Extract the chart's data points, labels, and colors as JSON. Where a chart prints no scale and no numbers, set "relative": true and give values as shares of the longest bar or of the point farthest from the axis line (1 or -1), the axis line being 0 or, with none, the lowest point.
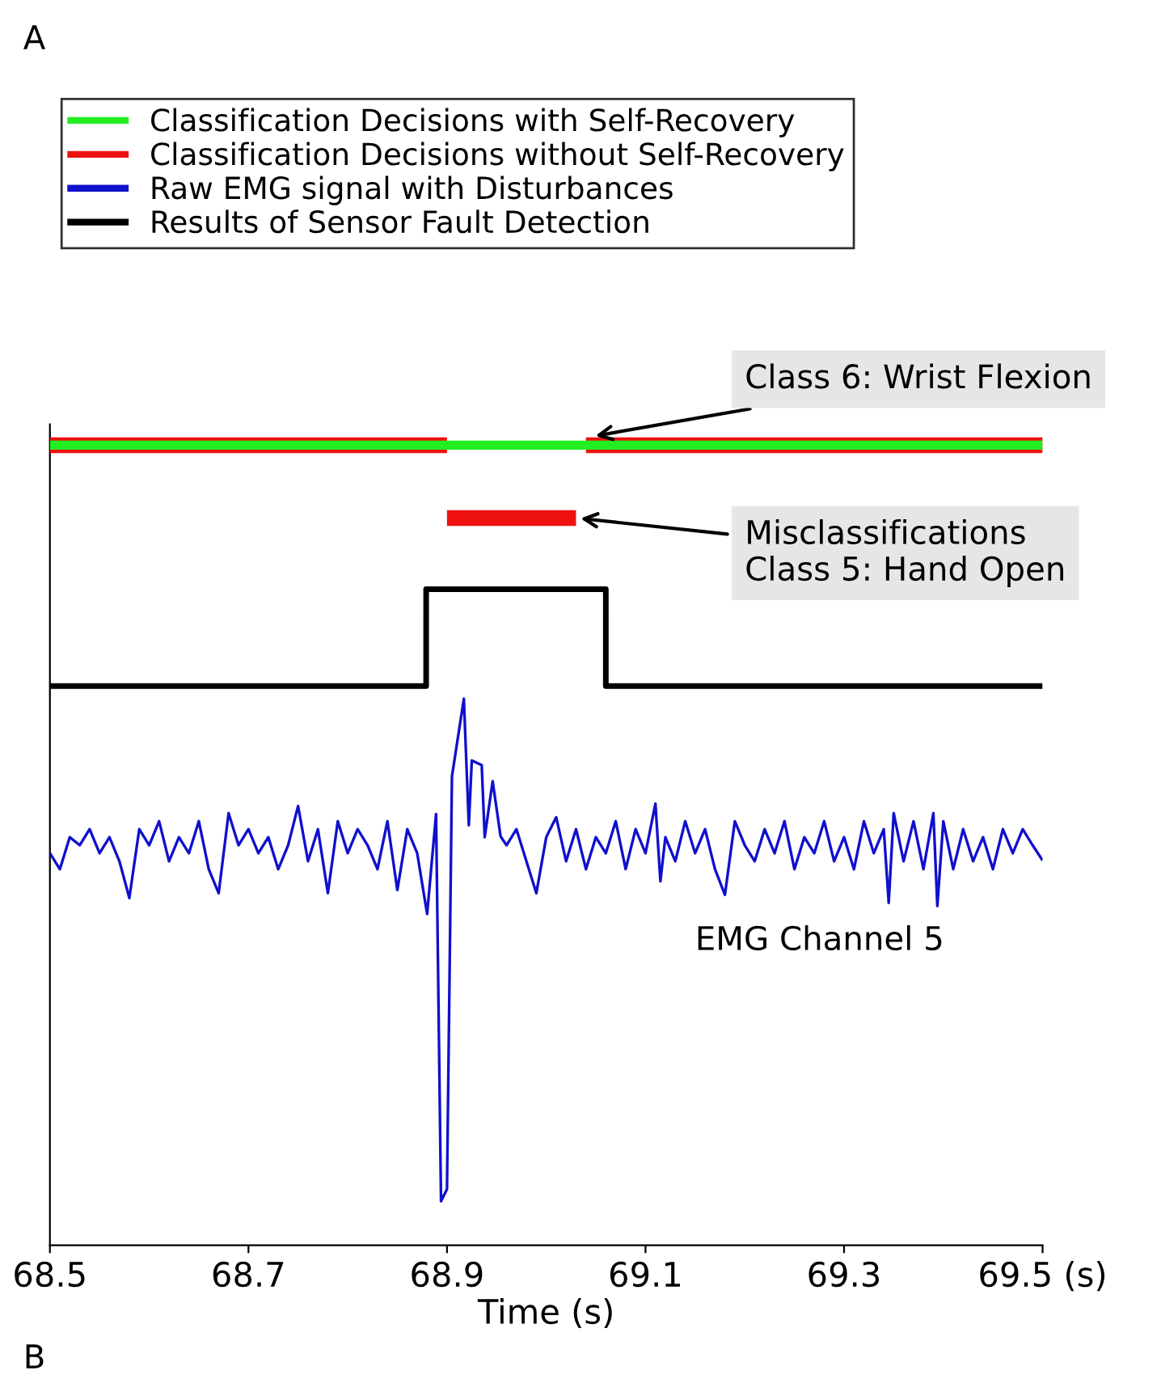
{
  "chart_data": {
    "type": "line",
    "relative": true,
    "xlabel": "Time (s)",
    "xlim": [
      68.5,
      69.5
    ],
    "xticks": [
      68.5,
      68.7,
      68.9,
      69.1,
      69.3,
      {
        "value": 69.5,
        "label": "69.5 (s)"
      }
    ],
    "grid": false,
    "legend": "top",
    "series": [
      {
        "name": "Classification Decisions with Self-Recovery",
        "color": "#22ee22",
        "x": [
          68.5,
          69.5
        ],
        "values": [
          1,
          1
        ]
      },
      {
        "name": "Classification Decisions without Self-Recovery",
        "color": "#ee1111",
        "x": [
          68.5,
          68.9
        ],
        "values": [
          1,
          1
        ]
      },
      {
        "name": "Raw EMG signal with Disturbances",
        "color": "#1010cc",
        "x": [
          68.5,
          68.51,
          68.52,
          68.53,
          68.54,
          68.55,
          68.56,
          68.57,
          68.58,
          68.59,
          68.6,
          68.61,
          68.62,
          68.63,
          68.64,
          68.65,
          68.66,
          68.67,
          68.68,
          68.69,
          68.7,
          68.71,
          68.72,
          68.73,
          68.74,
          68.75,
          68.76,
          68.77,
          68.78,
          68.79,
          68.8,
          68.81,
          68.82,
          68.83,
          68.84,
          68.85,
          68.86,
          68.87,
          68.88,
          68.889,
          68.894,
          68.9,
          68.905,
          68.917,
          68.922,
          68.925,
          68.935,
          68.938,
          68.946,
          68.954,
          68.96,
          68.97,
          68.98,
          68.99,
          69.0,
          69.01,
          69.02,
          69.03,
          69.04,
          69.05,
          69.06,
          69.07,
          69.08,
          69.09,
          69.1,
          69.11,
          69.115,
          69.12,
          69.13,
          69.14,
          69.15,
          69.16,
          69.17,
          69.18,
          69.19,
          69.2,
          69.21,
          69.22,
          69.23,
          69.24,
          69.25,
          69.26,
          69.27,
          69.28,
          69.29,
          69.3,
          69.31,
          69.32,
          69.33,
          69.34,
          69.345,
          69.35,
          69.36,
          69.37,
          69.38,
          69.39,
          69.394,
          69.4,
          69.41,
          69.42,
          69.43,
          69.44,
          69.45,
          69.46,
          69.47,
          69.48,
          69.49,
          69.5
        ],
        "values": [
          0.49,
          0.47,
          0.51,
          0.5,
          0.52,
          0.49,
          0.51,
          0.48,
          0.434,
          0.52,
          0.5,
          0.53,
          0.48,
          0.51,
          0.49,
          0.53,
          0.47,
          0.44,
          0.54,
          0.5,
          0.52,
          0.49,
          0.51,
          0.47,
          0.5,
          0.549,
          0.48,
          0.52,
          0.44,
          0.53,
          0.49,
          0.52,
          0.5,
          0.47,
          0.53,
          0.444,
          0.52,
          0.49,
          0.414,
          0.539,
          0.055,
          0.07,
          0.586,
          0.683,
          0.525,
          0.606,
          0.6,
          0.51,
          0.58,
          0.511,
          0.5,
          0.52,
          0.48,
          0.44,
          0.51,
          0.535,
          0.48,
          0.52,
          0.47,
          0.51,
          0.49,
          0.53,
          0.47,
          0.52,
          0.49,
          0.552,
          0.455,
          0.51,
          0.48,
          0.53,
          0.49,
          0.52,
          0.47,
          0.438,
          0.53,
          0.5,
          0.48,
          0.52,
          0.49,
          0.53,
          0.47,
          0.51,
          0.49,
          0.53,
          0.48,
          0.51,
          0.47,
          0.53,
          0.49,
          0.52,
          0.428,
          0.54,
          0.48,
          0.53,
          0.47,
          0.54,
          0.424,
          0.53,
          0.47,
          0.52,
          0.48,
          0.51,
          0.47,
          0.52,
          0.49,
          0.52,
          0.5,
          0.481
        ]
      },
      {
        "name": "Results of Sensor Fault Detection",
        "color": "#000000",
        "x": [
          68.5,
          68.879,
          68.879,
          69.06,
          69.06,
          69.5
        ],
        "values": [
          0.699,
          0.699,
          0.82,
          0.82,
          0.699,
          0.699
        ]
      },
      {
        "color": "#ee1111",
        "x": [
          69.04,
          69.5
        ],
        "values": [
          1,
          1
        ]
      },
      {
        "color": "#ee1111",
        "x": [
          68.9,
          69.03
        ],
        "values": [
          0.909,
          0.909
        ]
      }
    ],
    "annotations": [
      "Class 6: Wrist Flexion",
      {
        "text": "Misclassifications\nClass 5: Hand Open",
        "x": 69.03,
        "y": 0.909
      },
      "EMG Channel 5",
      "A",
      "B"
    ]
  }
}
